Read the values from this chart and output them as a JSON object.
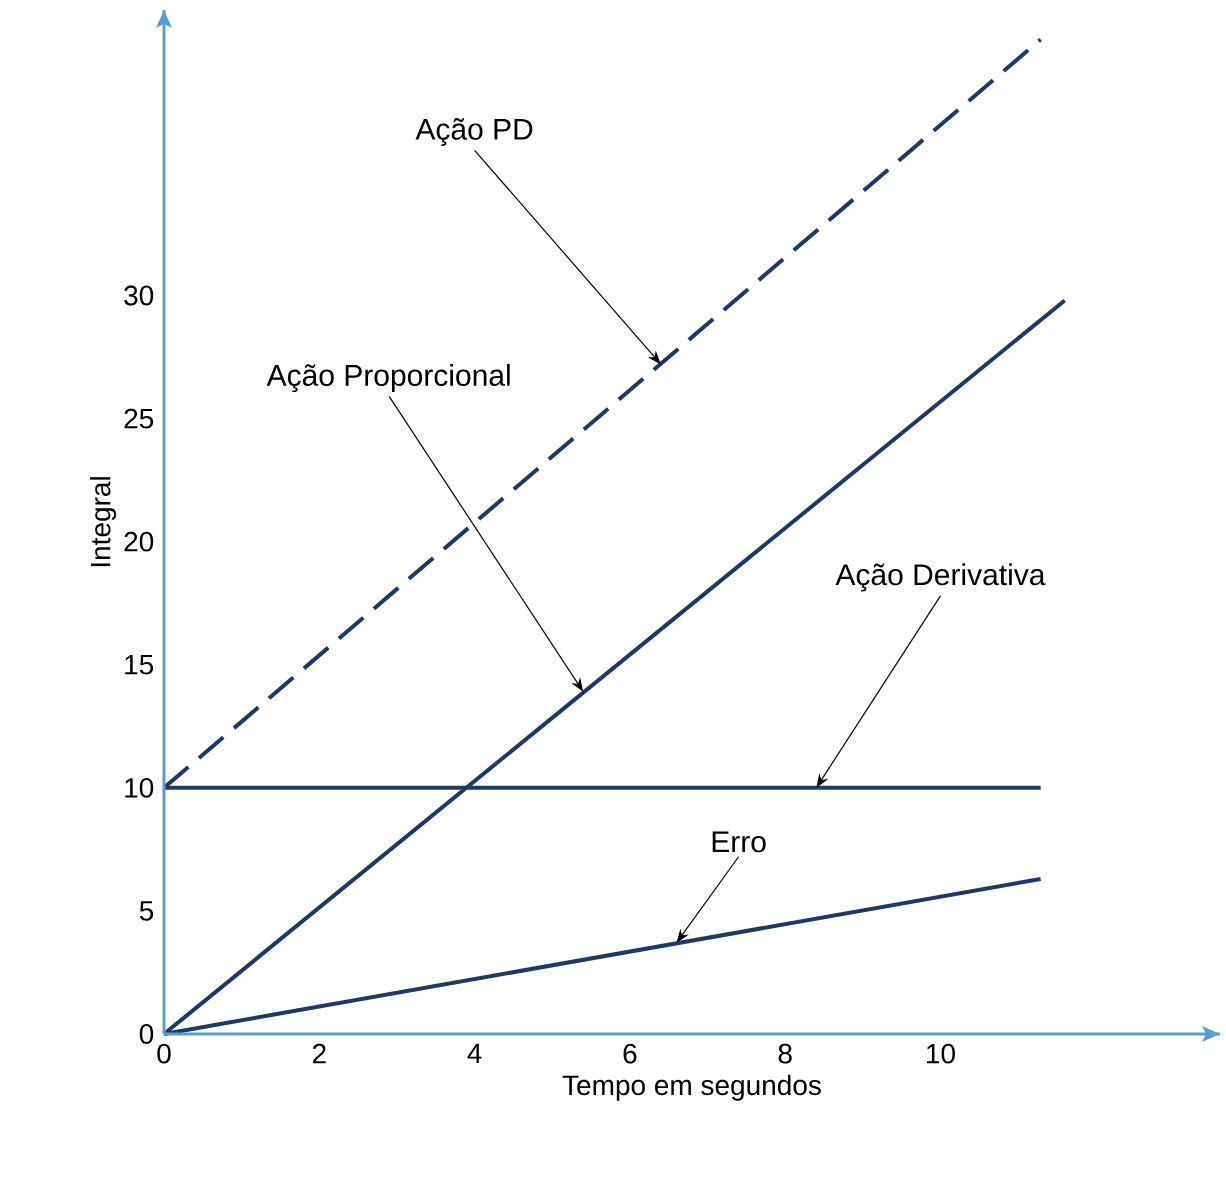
{
  "chart_data": {
    "type": "line",
    "xlabel": "Tempo em segundos",
    "ylabel": "Integral",
    "xlim": [
      0,
      13.6
    ],
    "ylim": [
      0,
      41.6
    ],
    "xticks": [
      0,
      2,
      4,
      6,
      8,
      10
    ],
    "yticks": [
      0,
      5,
      10,
      15,
      20,
      25,
      30
    ],
    "series": [
      {
        "color": "#1f3864",
        "line_style": "dashed",
        "x": [
          0,
          11.29
        ],
        "values": [
          10,
          40.4
        ]
      },
      {
        "color": "#1f3865",
        "line_style": "solid",
        "x": [
          0,
          11.6
        ],
        "values": [
          0,
          29.8
        ]
      },
      {
        "color": "#1f3966",
        "line_style": "solid",
        "x": [
          0,
          11.29
        ],
        "values": [
          10,
          10
        ]
      },
      {
        "color": "#203864",
        "line_style": "solid",
        "x": [
          0,
          11.29
        ],
        "values": [
          0,
          6.3
        ]
      }
    ],
    "annotations": [
      {
        "text": "Ação PD",
        "x": 6.4,
        "y": 27.2
      },
      {
        "text": "Ação Proporcional",
        "x": 5.4,
        "y": 13.9
      },
      {
        "text": "Ação Derivativa",
        "x": 8.4,
        "y": 10
      },
      {
        "text": "Erro",
        "x": 6.6,
        "y": 3.7
      }
    ]
  }
}
